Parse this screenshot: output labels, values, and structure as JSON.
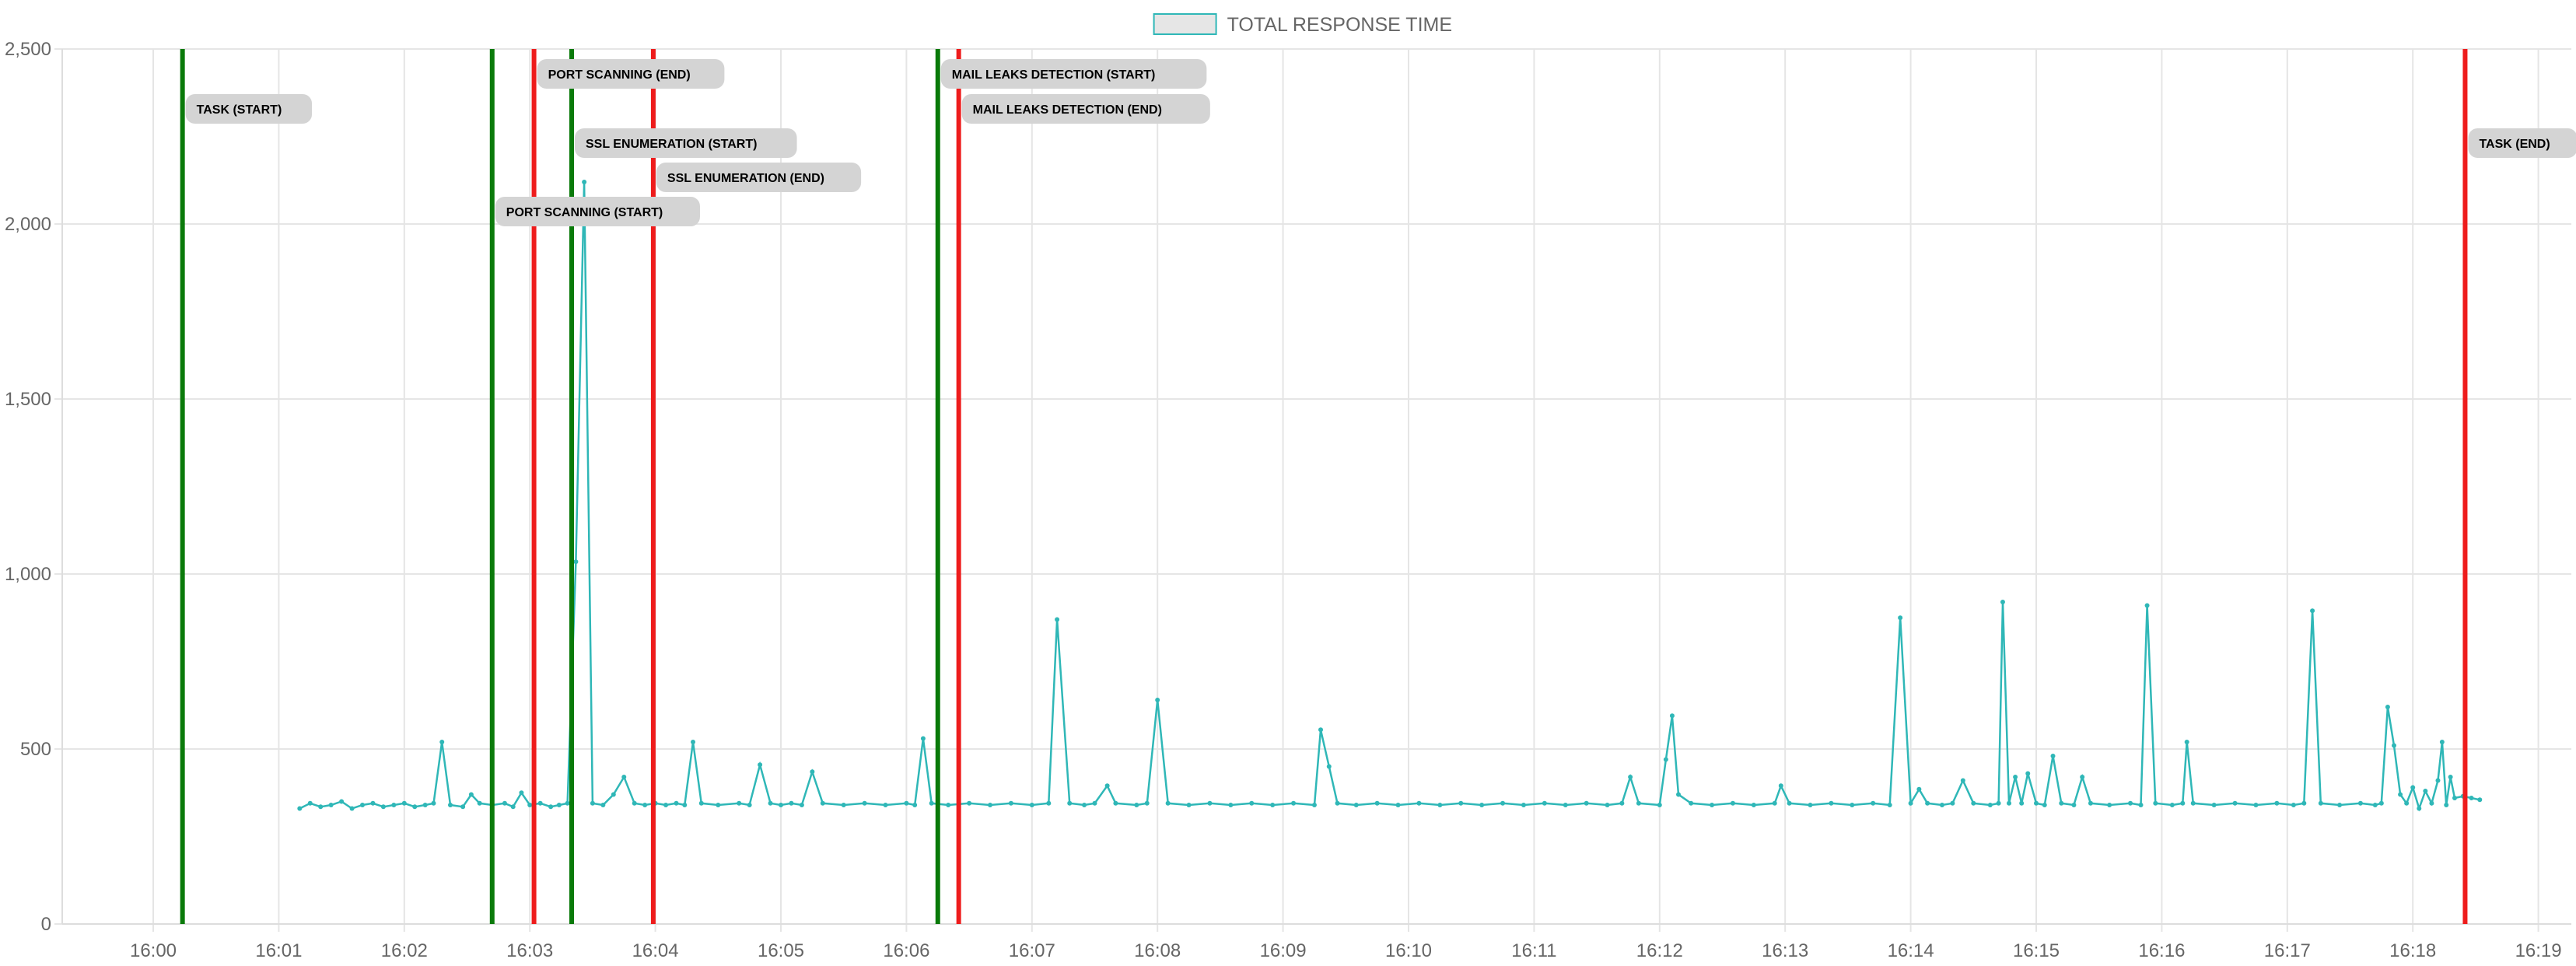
{
  "chart_data": {
    "type": "line",
    "title": "",
    "xlabel": "",
    "ylabel": "",
    "ylim": [
      0,
      2500
    ],
    "y_ticks": [
      0,
      500,
      1000,
      1500,
      2000,
      2500
    ],
    "y_tick_labels": [
      "0",
      "500",
      "1,000",
      "1,500",
      "2,000",
      "2,500"
    ],
    "x_range": [
      "16:00",
      "16:19"
    ],
    "x_ticks": [
      "16:00",
      "16:01",
      "16:02",
      "16:03",
      "16:04",
      "16:05",
      "16:06",
      "16:07",
      "16:08",
      "16:09",
      "16:10",
      "16:11",
      "16:12",
      "16:13",
      "16:14",
      "16:15",
      "16:16",
      "16:17",
      "16:18",
      "16:19"
    ],
    "grid": true,
    "legend": {
      "position": "top-center",
      "entries": [
        "TOTAL RESPONSE TIME"
      ]
    },
    "colors": {
      "series": "#2fb7b7",
      "start": "#0a7a0a",
      "end": "#ee1c1c",
      "grid": "#e5e5e5",
      "label_bg": "#d4d4d4"
    },
    "series": [
      {
        "name": "TOTAL RESPONSE TIME",
        "points": [
          [
            "16:01:10",
            330
          ],
          [
            "16:01:15",
            345
          ],
          [
            "16:01:20",
            335
          ],
          [
            "16:01:25",
            340
          ],
          [
            "16:01:30",
            350
          ],
          [
            "16:01:35",
            330
          ],
          [
            "16:01:40",
            340
          ],
          [
            "16:01:45",
            345
          ],
          [
            "16:01:50",
            335
          ],
          [
            "16:01:55",
            340
          ],
          [
            "16:02:00",
            345
          ],
          [
            "16:02:05",
            335
          ],
          [
            "16:02:10",
            340
          ],
          [
            "16:02:14",
            345
          ],
          [
            "16:02:18",
            520
          ],
          [
            "16:02:22",
            340
          ],
          [
            "16:02:28",
            335
          ],
          [
            "16:02:32",
            370
          ],
          [
            "16:02:36",
            345
          ],
          [
            "16:02:42",
            340
          ],
          [
            "16:02:48",
            345
          ],
          [
            "16:02:52",
            335
          ],
          [
            "16:02:56",
            375
          ],
          [
            "16:03:00",
            340
          ],
          [
            "16:03:05",
            345
          ],
          [
            "16:03:10",
            335
          ],
          [
            "16:03:14",
            340
          ],
          [
            "16:03:18",
            345
          ],
          [
            "16:03:22",
            1035
          ],
          [
            "16:03:26",
            2120
          ],
          [
            "16:03:30",
            345
          ],
          [
            "16:03:35",
            340
          ],
          [
            "16:03:40",
            370
          ],
          [
            "16:03:45",
            420
          ],
          [
            "16:03:50",
            345
          ],
          [
            "16:03:55",
            340
          ],
          [
            "16:04:00",
            345
          ],
          [
            "16:04:05",
            340
          ],
          [
            "16:04:10",
            345
          ],
          [
            "16:04:14",
            340
          ],
          [
            "16:04:18",
            520
          ],
          [
            "16:04:22",
            345
          ],
          [
            "16:04:30",
            340
          ],
          [
            "16:04:40",
            345
          ],
          [
            "16:04:45",
            340
          ],
          [
            "16:04:50",
            455
          ],
          [
            "16:04:55",
            345
          ],
          [
            "16:05:00",
            340
          ],
          [
            "16:05:05",
            345
          ],
          [
            "16:05:10",
            340
          ],
          [
            "16:05:15",
            435
          ],
          [
            "16:05:20",
            345
          ],
          [
            "16:05:30",
            340
          ],
          [
            "16:05:40",
            345
          ],
          [
            "16:05:50",
            340
          ],
          [
            "16:06:00",
            345
          ],
          [
            "16:06:04",
            340
          ],
          [
            "16:06:08",
            530
          ],
          [
            "16:06:12",
            345
          ],
          [
            "16:06:20",
            340
          ],
          [
            "16:06:30",
            345
          ],
          [
            "16:06:40",
            340
          ],
          [
            "16:06:50",
            345
          ],
          [
            "16:07:00",
            340
          ],
          [
            "16:07:08",
            345
          ],
          [
            "16:07:12",
            870
          ],
          [
            "16:07:18",
            345
          ],
          [
            "16:07:25",
            340
          ],
          [
            "16:07:30",
            345
          ],
          [
            "16:07:36",
            395
          ],
          [
            "16:07:40",
            345
          ],
          [
            "16:07:50",
            340
          ],
          [
            "16:07:55",
            345
          ],
          [
            "16:08:00",
            640
          ],
          [
            "16:08:05",
            345
          ],
          [
            "16:08:15",
            340
          ],
          [
            "16:08:25",
            345
          ],
          [
            "16:08:35",
            340
          ],
          [
            "16:08:45",
            345
          ],
          [
            "16:08:55",
            340
          ],
          [
            "16:09:05",
            345
          ],
          [
            "16:09:15",
            340
          ],
          [
            "16:09:18",
            555
          ],
          [
            "16:09:22",
            450
          ],
          [
            "16:09:26",
            345
          ],
          [
            "16:09:35",
            340
          ],
          [
            "16:09:45",
            345
          ],
          [
            "16:09:55",
            340
          ],
          [
            "16:10:05",
            345
          ],
          [
            "16:10:15",
            340
          ],
          [
            "16:10:25",
            345
          ],
          [
            "16:10:35",
            340
          ],
          [
            "16:10:45",
            345
          ],
          [
            "16:10:55",
            340
          ],
          [
            "16:11:05",
            345
          ],
          [
            "16:11:15",
            340
          ],
          [
            "16:11:25",
            345
          ],
          [
            "16:11:35",
            340
          ],
          [
            "16:11:42",
            345
          ],
          [
            "16:11:46",
            420
          ],
          [
            "16:11:50",
            345
          ],
          [
            "16:12:00",
            340
          ],
          [
            "16:12:03",
            470
          ],
          [
            "16:12:06",
            595
          ],
          [
            "16:12:09",
            370
          ],
          [
            "16:12:15",
            345
          ],
          [
            "16:12:25",
            340
          ],
          [
            "16:12:35",
            345
          ],
          [
            "16:12:45",
            340
          ],
          [
            "16:12:55",
            345
          ],
          [
            "16:12:58",
            395
          ],
          [
            "16:13:02",
            345
          ],
          [
            "16:13:12",
            340
          ],
          [
            "16:13:22",
            345
          ],
          [
            "16:13:32",
            340
          ],
          [
            "16:13:42",
            345
          ],
          [
            "16:13:50",
            340
          ],
          [
            "16:13:55",
            875
          ],
          [
            "16:14:00",
            345
          ],
          [
            "16:14:04",
            385
          ],
          [
            "16:14:08",
            345
          ],
          [
            "16:14:15",
            340
          ],
          [
            "16:14:20",
            345
          ],
          [
            "16:14:25",
            410
          ],
          [
            "16:14:30",
            345
          ],
          [
            "16:14:38",
            340
          ],
          [
            "16:14:42",
            345
          ],
          [
            "16:14:44",
            920
          ],
          [
            "16:14:47",
            345
          ],
          [
            "16:14:50",
            420
          ],
          [
            "16:14:53",
            345
          ],
          [
            "16:14:56",
            430
          ],
          [
            "16:15:00",
            345
          ],
          [
            "16:15:04",
            340
          ],
          [
            "16:15:08",
            480
          ],
          [
            "16:15:12",
            345
          ],
          [
            "16:15:18",
            340
          ],
          [
            "16:15:22",
            420
          ],
          [
            "16:15:26",
            345
          ],
          [
            "16:15:35",
            340
          ],
          [
            "16:15:45",
            345
          ],
          [
            "16:15:50",
            340
          ],
          [
            "16:15:53",
            910
          ],
          [
            "16:15:57",
            345
          ],
          [
            "16:16:05",
            340
          ],
          [
            "16:16:10",
            345
          ],
          [
            "16:16:12",
            520
          ],
          [
            "16:16:15",
            345
          ],
          [
            "16:16:25",
            340
          ],
          [
            "16:16:35",
            345
          ],
          [
            "16:16:45",
            340
          ],
          [
            "16:16:55",
            345
          ],
          [
            "16:17:03",
            340
          ],
          [
            "16:17:08",
            345
          ],
          [
            "16:17:12",
            895
          ],
          [
            "16:17:16",
            345
          ],
          [
            "16:17:25",
            340
          ],
          [
            "16:17:35",
            345
          ],
          [
            "16:17:42",
            340
          ],
          [
            "16:17:45",
            345
          ],
          [
            "16:17:48",
            620
          ],
          [
            "16:17:51",
            510
          ],
          [
            "16:17:54",
            370
          ],
          [
            "16:17:57",
            345
          ],
          [
            "16:18:00",
            390
          ],
          [
            "16:18:03",
            330
          ],
          [
            "16:18:06",
            380
          ],
          [
            "16:18:09",
            345
          ],
          [
            "16:18:12",
            410
          ],
          [
            "16:18:14",
            520
          ],
          [
            "16:18:16",
            340
          ],
          [
            "16:18:18",
            420
          ],
          [
            "16:18:20",
            360
          ],
          [
            "16:18:24",
            365
          ],
          [
            "16:18:28",
            360
          ],
          [
            "16:18:32",
            355
          ]
        ]
      }
    ],
    "annotations": [
      {
        "label": "TASK (START)",
        "time": "16:00:14",
        "kind": "start",
        "label_level": 2
      },
      {
        "label": "PORT SCANNING (START)",
        "time": "16:02:42",
        "kind": "start",
        "label_level": 6
      },
      {
        "label": "PORT SCANNING (END)",
        "time": "16:03:02",
        "kind": "end",
        "label_level": 1
      },
      {
        "label": "SSL ENUMERATION (START)",
        "time": "16:03:20",
        "kind": "start",
        "label_level": 3
      },
      {
        "label": "SSL ENUMERATION (END)",
        "time": "16:03:59",
        "kind": "end",
        "label_level": 4
      },
      {
        "label": "MAIL LEAKS DETECTION (START)",
        "time": "16:06:15",
        "kind": "start",
        "label_level": 1
      },
      {
        "label": "MAIL LEAKS DETECTION (END)",
        "time": "16:06:25",
        "kind": "end",
        "label_level": 2
      },
      {
        "label": "TASK (END)",
        "time": "16:18:25",
        "kind": "end",
        "label_level": 3
      }
    ]
  }
}
